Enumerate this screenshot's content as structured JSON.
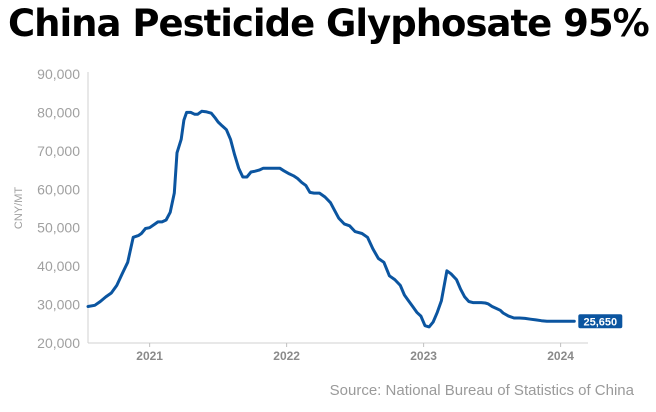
{
  "chart_data": {
    "type": "line",
    "title": "China Pesticide Glyphosate 95%",
    "ylabel": "CNY/MT",
    "xlabel": "",
    "source": "Source: National Bureau of Statistics of China",
    "ylim": [
      20000,
      90000
    ],
    "xlim": [
      2020.55,
      2024.2
    ],
    "yticks": [
      20000,
      30000,
      40000,
      50000,
      60000,
      70000,
      80000,
      90000
    ],
    "ytick_labels": [
      "20,000",
      "30,000",
      "40,000",
      "50,000",
      "60,000",
      "70,000",
      "80,000",
      "90,000"
    ],
    "xticks": [
      2021,
      2022,
      2023,
      2024
    ],
    "xtick_labels": [
      "2021",
      "2022",
      "2023",
      "2024"
    ],
    "grid": false,
    "line_color": "#0b55a0",
    "end_label": "25,650",
    "series": [
      {
        "x": [
          2020.55,
          2020.6,
          2020.64,
          2020.68,
          2020.72,
          2020.76,
          2020.8,
          2020.84,
          2020.88,
          2020.92,
          2020.94,
          2020.97,
          2021.0,
          2021.04,
          2021.06,
          2021.09,
          2021.12,
          2021.15,
          2021.18,
          2021.2,
          2021.23,
          2021.25,
          2021.27,
          2021.3,
          2021.33,
          2021.35,
          2021.38,
          2021.41,
          2021.45,
          2021.48,
          2021.5,
          2021.53,
          2021.56,
          2021.59,
          2021.62,
          2021.65,
          2021.68,
          2021.71,
          2021.74,
          2021.77,
          2021.8,
          2021.83,
          2021.86,
          2021.89,
          2021.92,
          2021.95,
          2021.98,
          2022.02,
          2022.05,
          2022.08,
          2022.11,
          2022.14,
          2022.17,
          2022.2,
          2022.24,
          2022.28,
          2022.32,
          2022.35,
          2022.38,
          2022.42,
          2022.46,
          2022.5,
          2022.55,
          2022.59,
          2022.63,
          2022.67,
          2022.71,
          2022.75,
          2022.79,
          2022.83,
          2022.86,
          2022.89,
          2022.92,
          2022.95,
          2022.98,
          2023.01,
          2023.04,
          2023.07,
          2023.1,
          2023.13,
          2023.17,
          2023.2,
          2023.24,
          2023.27,
          2023.3,
          2023.33,
          2023.36,
          2023.39,
          2023.42,
          2023.45,
          2023.47,
          2023.5,
          2023.53,
          2023.56,
          2023.58,
          2023.62,
          2023.66,
          2023.7,
          2023.74,
          2023.78,
          2023.82,
          2023.86,
          2023.9,
          2023.94,
          2023.98,
          2024.02,
          2024.06,
          2024.1
        ],
        "values": [
          29500,
          29800,
          30800,
          32000,
          33000,
          35000,
          38000,
          41000,
          47500,
          48000,
          48500,
          49800,
          50000,
          51000,
          51500,
          51500,
          52000,
          54000,
          59000,
          69500,
          73000,
          78000,
          80000,
          80000,
          79500,
          79500,
          80300,
          80200,
          79800,
          78500,
          77500,
          76500,
          75500,
          73000,
          69000,
          65500,
          63200,
          63200,
          64500,
          64700,
          65000,
          65500,
          65500,
          65500,
          65500,
          65500,
          64800,
          64000,
          63500,
          62800,
          61800,
          61000,
          59200,
          59000,
          59000,
          58000,
          56500,
          54500,
          52500,
          51000,
          50500,
          49000,
          48500,
          47500,
          44500,
          42000,
          41000,
          37500,
          36500,
          35000,
          32500,
          31000,
          29500,
          28000,
          27000,
          24500,
          24200,
          25500,
          28000,
          31000,
          38800,
          38000,
          36500,
          34000,
          32000,
          30800,
          30500,
          30500,
          30500,
          30400,
          30200,
          29500,
          29000,
          28500,
          27800,
          27000,
          26500,
          26500,
          26400,
          26200,
          26000,
          25800,
          25650,
          25650,
          25650,
          25650,
          25650,
          25650
        ]
      }
    ]
  }
}
